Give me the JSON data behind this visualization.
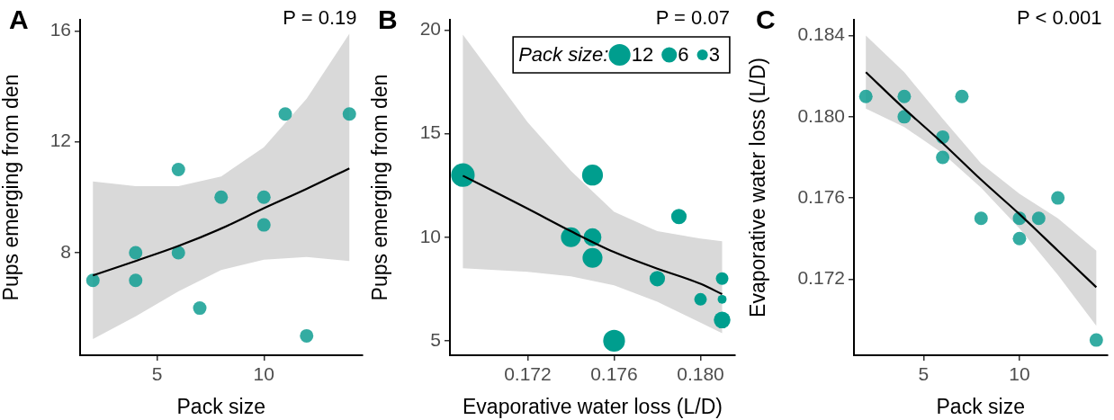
{
  "chart_data": [
    {
      "type": "scatter",
      "xlabel": "Pack size",
      "ylabel": "Pups emerging from den",
      "annotations": [
        "A",
        "P = 0.19"
      ],
      "xlim": [
        1.4,
        14.6
      ],
      "ylim": [
        4.3,
        16.4
      ],
      "xticks": [
        {
          "value": 5,
          "label": "5"
        },
        {
          "value": 10,
          "label": "10"
        }
      ],
      "yticks": [
        {
          "value": 8,
          "label": "8"
        },
        {
          "value": 12,
          "label": "12"
        },
        {
          "value": 16,
          "label": "16"
        }
      ],
      "grid": false,
      "series": [
        {
          "marker": "circle",
          "color": "#109e92",
          "x": [
            2,
            4,
            4,
            6,
            6,
            7,
            8,
            10,
            10,
            11,
            12,
            14
          ],
          "values": [
            7,
            8,
            7,
            11,
            8,
            6,
            10,
            10,
            9,
            13,
            5,
            13
          ]
        },
        {
          "type": "line",
          "color": "#000000",
          "x": [
            2,
            4,
            6,
            8,
            10,
            12,
            14
          ],
          "values": [
            7.18,
            7.7,
            8.24,
            8.87,
            9.6,
            10.3,
            11.04
          ],
          "lower": [
            4.88,
            5.7,
            6.6,
            7.37,
            7.75,
            7.84,
            7.7
          ],
          "upper": [
            10.57,
            10.4,
            10.4,
            10.75,
            11.8,
            13.55,
            15.9
          ]
        }
      ]
    },
    {
      "type": "bubble",
      "xlabel": "Evaporative water loss (L/D)",
      "ylabel": "Pups emerging from den",
      "annotations": [
        "B",
        "P = 0.07"
      ],
      "xlim": [
        0.1684,
        0.1816
      ],
      "ylim": [
        4.3,
        20.5
      ],
      "xticks": [
        {
          "value": 0.172,
          "label": "0.172"
        },
        {
          "value": 0.176,
          "label": "0.176"
        },
        {
          "value": 0.18,
          "label": "0.180"
        }
      ],
      "yticks": [
        5,
        10,
        15,
        20
      ],
      "grid": false,
      "legend_title": "Pack size:",
      "size_legend": [
        12,
        6,
        3
      ],
      "series": [
        {
          "color": "#009e8e",
          "x": [
            0.169,
            0.175,
            0.174,
            0.175,
            0.175,
            0.176,
            0.178,
            0.179,
            0.18,
            0.181,
            0.181,
            0.181
          ],
          "values": [
            13,
            13,
            10,
            10,
            9,
            5,
            8,
            11,
            7,
            8,
            7,
            6
          ],
          "sizes": [
            14,
            11,
            10,
            8,
            10,
            12,
            6,
            6,
            4,
            4,
            2,
            7
          ]
        },
        {
          "type": "line",
          "color": "#000000",
          "x": [
            0.169,
            0.172,
            0.174,
            0.176,
            0.178,
            0.18,
            0.181
          ],
          "values": [
            12.97,
            11.38,
            10.29,
            9.28,
            8.48,
            7.75,
            7.25
          ],
          "lower": [
            8.5,
            8.33,
            8.11,
            7.68,
            6.88,
            5.87,
            5.36
          ],
          "upper": [
            19.78,
            15.55,
            13.2,
            11.23,
            10.29,
            9.93,
            9.8
          ]
        }
      ]
    },
    {
      "type": "scatter",
      "xlabel": "Pack size",
      "ylabel": "Evaporative water loss (L/D)",
      "annotations": [
        "C",
        "P < 0.001"
      ],
      "xlim": [
        1.38,
        14.57
      ],
      "ylim": [
        0.16825,
        0.18478
      ],
      "xticks": [
        {
          "value": 5,
          "label": "5"
        },
        {
          "value": 10,
          "label": "10"
        }
      ],
      "yticks": [
        {
          "value": 0.172,
          "label": "0.172"
        },
        {
          "value": 0.176,
          "label": "0.176"
        },
        {
          "value": 0.18,
          "label": "0.180"
        },
        {
          "value": 0.184,
          "label": "0.184"
        }
      ],
      "grid": false,
      "series": [
        {
          "marker": "circle",
          "color": "#109e92",
          "x": [
            2,
            4,
            4,
            6,
            6,
            7,
            8,
            10,
            10,
            11,
            12,
            14
          ],
          "values": [
            0.181,
            0.181,
            0.18,
            0.179,
            0.178,
            0.181,
            0.175,
            0.175,
            0.174,
            0.175,
            0.176,
            0.169
          ]
        },
        {
          "type": "line",
          "color": "#000000",
          "x": [
            2,
            4,
            6,
            8,
            10,
            12,
            14
          ],
          "values": [
            0.1822,
            0.1804,
            0.1787,
            0.1769,
            0.1752,
            0.1734,
            0.1716
          ],
          "lower": [
            0.1804,
            0.1795,
            0.1782,
            0.1765,
            0.1745,
            0.1722,
            0.1697
          ],
          "upper": [
            0.184,
            0.1822,
            0.1799,
            0.1777,
            0.1762,
            0.175,
            0.1734
          ]
        }
      ]
    }
  ]
}
